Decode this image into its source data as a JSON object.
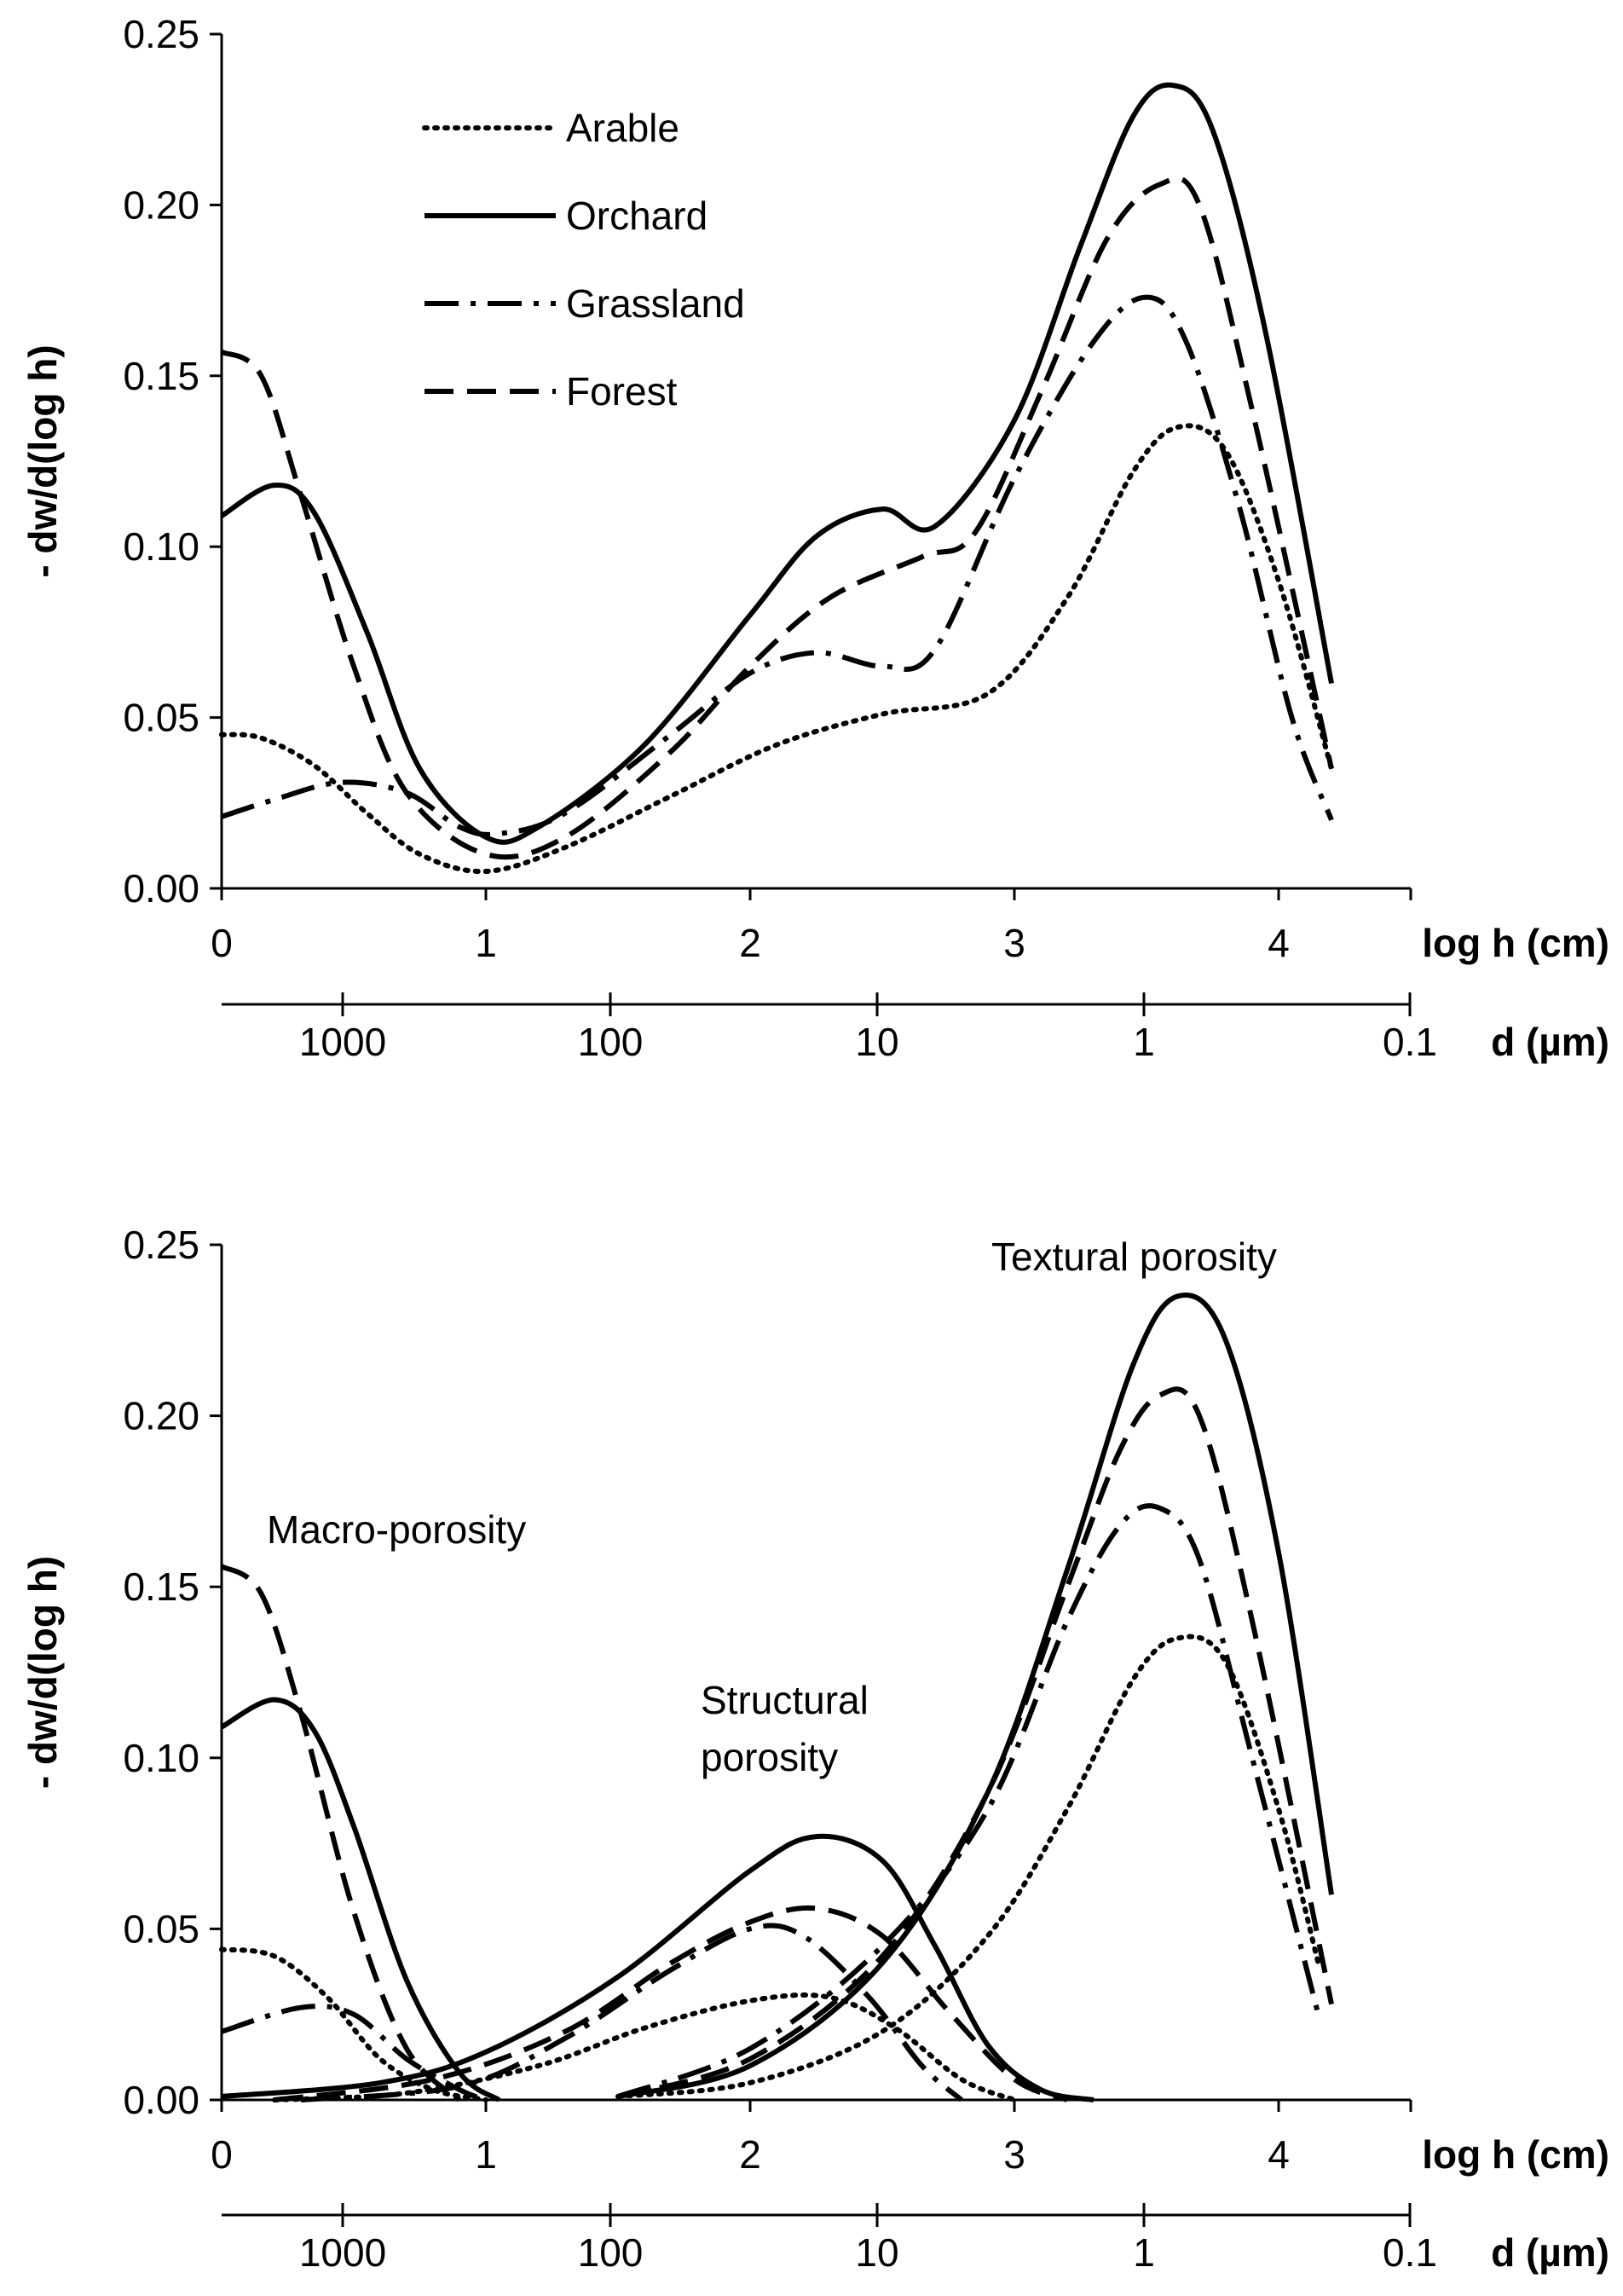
{
  "chart_data": [
    {
      "type": "line",
      "panel": "top",
      "ylabel": "- dw/d(log h)",
      "ylabel_italic_part": "h",
      "xlabel_primary": "log h (cm)",
      "xlabel_secondary": "d (µm)",
      "ylim": [
        0,
        0.25
      ],
      "xlim": [
        0,
        4.5
      ],
      "y_ticks": [
        "0.00",
        "0.05",
        "0.10",
        "0.15",
        "0.20",
        "0.25"
      ],
      "x_ticks": [
        "0",
        "1",
        "2",
        "3",
        "4"
      ],
      "d_ticks": [
        "1000",
        "100",
        "10",
        "1",
        "0.1"
      ],
      "legend": {
        "position": "top-left",
        "entries": [
          "Arable",
          "Orchard",
          "Grassland",
          "Forest"
        ]
      },
      "grid": false,
      "series": [
        {
          "name": "Arable",
          "style": "dotted",
          "x": [
            0,
            0.15,
            0.35,
            0.55,
            0.75,
            1.0,
            1.3,
            1.7,
            2.1,
            2.5,
            2.9,
            3.2,
            3.45,
            3.62,
            3.8,
            4.0,
            4.2
          ],
          "y": [
            0.045,
            0.044,
            0.036,
            0.022,
            0.01,
            0.005,
            0.012,
            0.027,
            0.042,
            0.051,
            0.057,
            0.085,
            0.122,
            0.135,
            0.128,
            0.09,
            0.035
          ]
        },
        {
          "name": "Orchard",
          "style": "solid",
          "x": [
            0,
            0.2,
            0.35,
            0.55,
            0.75,
            1.0,
            1.2,
            1.6,
            2.0,
            2.25,
            2.5,
            2.7,
            3.0,
            3.25,
            3.45,
            3.6,
            3.75,
            3.95,
            4.2
          ],
          "y": [
            0.109,
            0.118,
            0.11,
            0.075,
            0.035,
            0.015,
            0.018,
            0.042,
            0.08,
            0.103,
            0.111,
            0.106,
            0.137,
            0.188,
            0.226,
            0.235,
            0.222,
            0.163,
            0.06
          ]
        },
        {
          "name": "Grassland",
          "style": "dashdot",
          "x": [
            0,
            0.2,
            0.45,
            0.7,
            0.9,
            1.05,
            1.3,
            1.7,
            2.0,
            2.25,
            2.5,
            2.7,
            3.0,
            3.3,
            3.5,
            3.65,
            3.85,
            4.05,
            4.2
          ],
          "y": [
            0.021,
            0.026,
            0.031,
            0.028,
            0.018,
            0.016,
            0.022,
            0.045,
            0.063,
            0.069,
            0.065,
            0.07,
            0.12,
            0.16,
            0.173,
            0.16,
            0.112,
            0.05,
            0.02
          ]
        },
        {
          "name": "Forest",
          "style": "dashed",
          "x": [
            0,
            0.15,
            0.3,
            0.5,
            0.7,
            1.0,
            1.3,
            1.7,
            2.0,
            2.3,
            2.65,
            2.85,
            3.1,
            3.35,
            3.55,
            3.7,
            3.9,
            4.2
          ],
          "y": [
            0.157,
            0.15,
            0.115,
            0.065,
            0.028,
            0.01,
            0.015,
            0.04,
            0.065,
            0.085,
            0.097,
            0.104,
            0.145,
            0.19,
            0.206,
            0.2,
            0.14,
            0.035
          ]
        }
      ]
    },
    {
      "type": "line",
      "panel": "bottom",
      "ylabel": "- dw/d(log h)",
      "ylabel_italic_part": "h",
      "xlabel_primary": "log h (cm)",
      "xlabel_secondary": "d (µm)",
      "ylim": [
        0,
        0.25
      ],
      "xlim": [
        0,
        4.5
      ],
      "y_ticks": [
        "0.00",
        "0.05",
        "0.10",
        "0.15",
        "0.20",
        "0.25"
      ],
      "x_ticks": [
        "0",
        "1",
        "2",
        "3",
        "4"
      ],
      "d_ticks": [
        "1000",
        "100",
        "10",
        "1",
        "0.1"
      ],
      "grid": false,
      "annotations": [
        "Textural porosity",
        "Macro-porosity",
        "Structural",
        "porosity"
      ],
      "series": [
        {
          "name": "Arable-macro",
          "style": "dotted",
          "x": [
            0,
            0.2,
            0.4,
            0.6,
            0.8,
            1.0
          ],
          "y": [
            0.044,
            0.042,
            0.03,
            0.012,
            0.003,
            0.0
          ]
        },
        {
          "name": "Orchard-macro",
          "style": "solid",
          "x": [
            0,
            0.2,
            0.35,
            0.5,
            0.7,
            0.9,
            1.05
          ],
          "y": [
            0.109,
            0.117,
            0.108,
            0.08,
            0.035,
            0.008,
            0.0
          ]
        },
        {
          "name": "Grassland-macro",
          "style": "dashdot",
          "x": [
            0,
            0.3,
            0.5,
            0.7,
            0.9,
            1.0
          ],
          "y": [
            0.02,
            0.027,
            0.025,
            0.012,
            0.003,
            0.0
          ]
        },
        {
          "name": "Forest-macro",
          "style": "dashed",
          "x": [
            0,
            0.15,
            0.3,
            0.5,
            0.7,
            0.9
          ],
          "y": [
            0.156,
            0.148,
            0.113,
            0.055,
            0.015,
            0.0
          ]
        },
        {
          "name": "Arable-struct",
          "style": "dotted",
          "x": [
            0.2,
            0.7,
            1.2,
            1.6,
            2.0,
            2.3,
            2.55,
            2.8,
            3.0
          ],
          "y": [
            0.0,
            0.002,
            0.01,
            0.021,
            0.029,
            0.03,
            0.021,
            0.006,
            0.0
          ]
        },
        {
          "name": "Orchard-struct",
          "style": "solid",
          "x": [
            0,
            0.6,
            1.0,
            1.5,
            2.0,
            2.25,
            2.5,
            2.7,
            2.9,
            3.1,
            3.3
          ],
          "y": [
            0.001,
            0.005,
            0.014,
            0.036,
            0.067,
            0.077,
            0.07,
            0.045,
            0.016,
            0.003,
            0.0
          ]
        },
        {
          "name": "Grassland-struct",
          "style": "dashdot",
          "x": [
            0.3,
            0.9,
            1.3,
            1.7,
            2.0,
            2.2,
            2.45,
            2.65,
            2.8
          ],
          "y": [
            0.0,
            0.004,
            0.018,
            0.038,
            0.05,
            0.048,
            0.03,
            0.01,
            0.0
          ]
        },
        {
          "name": "Forest-struct",
          "style": "dashed",
          "x": [
            0.2,
            0.8,
            1.3,
            1.7,
            2.0,
            2.25,
            2.5,
            2.75,
            3.0,
            3.2
          ],
          "y": [
            0.0,
            0.006,
            0.02,
            0.04,
            0.052,
            0.056,
            0.048,
            0.026,
            0.006,
            0.0
          ]
        },
        {
          "name": "Arable-text",
          "style": "dotted",
          "x": [
            1.5,
            2.0,
            2.5,
            2.9,
            3.2,
            3.45,
            3.62,
            3.8,
            4.0,
            4.15
          ],
          "y": [
            0.001,
            0.005,
            0.02,
            0.048,
            0.085,
            0.123,
            0.135,
            0.128,
            0.085,
            0.04
          ]
        },
        {
          "name": "Orchard-text",
          "style": "solid",
          "x": [
            1.5,
            2.0,
            2.5,
            2.9,
            3.2,
            3.45,
            3.62,
            3.8,
            4.0,
            4.2
          ],
          "y": [
            0.001,
            0.01,
            0.04,
            0.09,
            0.155,
            0.215,
            0.235,
            0.222,
            0.16,
            0.06
          ]
        },
        {
          "name": "Grassland-text",
          "style": "dashdot",
          "x": [
            1.5,
            2.0,
            2.5,
            2.9,
            3.2,
            3.4,
            3.55,
            3.7,
            3.9,
            4.15
          ],
          "y": [
            0.001,
            0.015,
            0.045,
            0.085,
            0.14,
            0.168,
            0.173,
            0.158,
            0.1,
            0.025
          ]
        },
        {
          "name": "Forest-text",
          "style": "dashed",
          "x": [
            1.5,
            2.0,
            2.5,
            2.9,
            3.2,
            3.4,
            3.55,
            3.7,
            3.9,
            4.2
          ],
          "y": [
            0.001,
            0.012,
            0.042,
            0.09,
            0.15,
            0.19,
            0.206,
            0.2,
            0.14,
            0.028
          ]
        }
      ]
    }
  ],
  "styles": {
    "solid": "",
    "dotted": "3 9",
    "dashed": "34 16",
    "dashdot": "40 14 6 14"
  },
  "colors": {
    "ink": "#000000",
    "background": "#ffffff"
  }
}
